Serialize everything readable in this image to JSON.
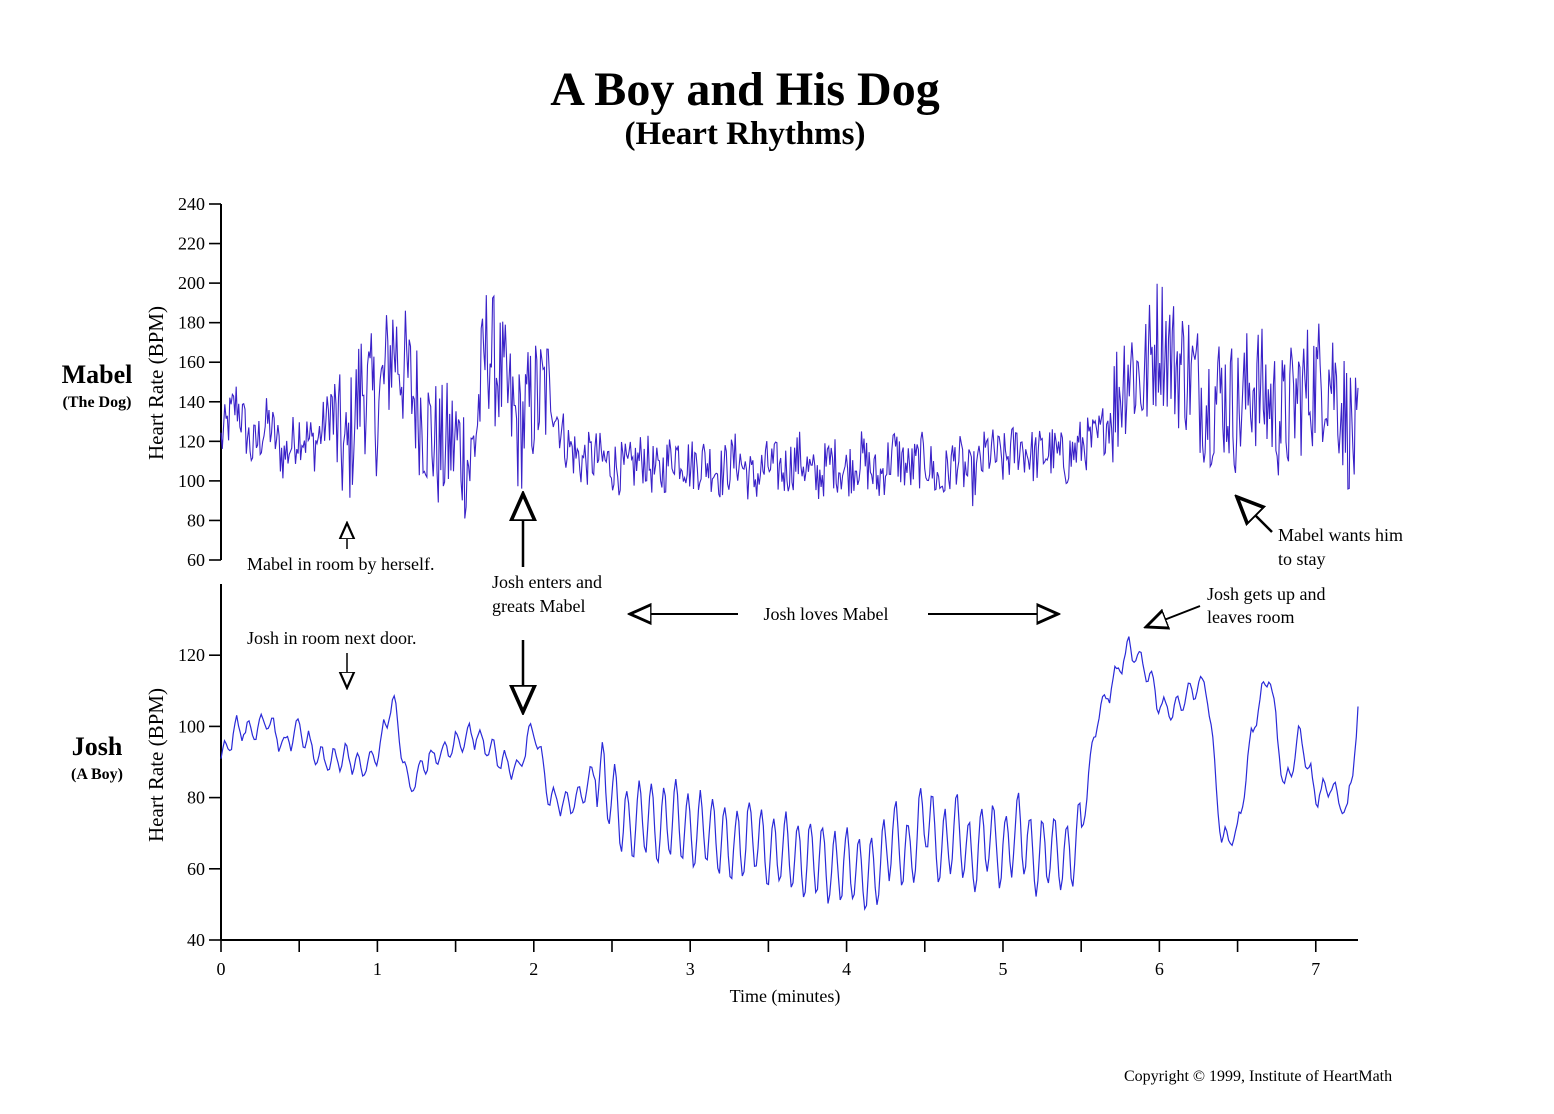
{
  "chart_data": [
    {
      "type": "line",
      "panel": "Mabel",
      "panel_name": "Mabel",
      "panel_subtitle": "(The Dog)",
      "ylabel": "Heart Rate (BPM)",
      "ylim": [
        60,
        240
      ],
      "yticks": [
        60,
        80,
        100,
        120,
        140,
        160,
        180,
        200,
        220,
        240
      ],
      "xlim": [
        0,
        7.27
      ],
      "series": [
        {
          "name": "Mabel heart rate",
          "color": "#3a22c8",
          "x": [
            0,
            0.1,
            0.2,
            0.3,
            0.4,
            0.5,
            0.6,
            0.7,
            0.8,
            0.9,
            1.0,
            1.1,
            1.2,
            1.3,
            1.4,
            1.5,
            1.6,
            1.7,
            1.8,
            1.9,
            2.0,
            2.1,
            2.2,
            2.3,
            2.4,
            2.5,
            2.6,
            2.7,
            2.8,
            2.9,
            3.0,
            3.1,
            3.2,
            3.3,
            3.4,
            3.5,
            3.6,
            3.7,
            3.8,
            3.9,
            4.0,
            4.1,
            4.2,
            4.3,
            4.4,
            4.5,
            4.6,
            4.7,
            4.8,
            4.9,
            5.0,
            5.1,
            5.2,
            5.3,
            5.4,
            5.5,
            5.6,
            5.7,
            5.8,
            5.9,
            6.0,
            6.1,
            6.2,
            6.3,
            6.4,
            6.5,
            6.6,
            6.7,
            6.8,
            6.9,
            7.0,
            7.1,
            7.2,
            7.27
          ],
          "values": [
            120,
            140,
            115,
            130,
            112,
            125,
            118,
            135,
            110,
            150,
            135,
            170,
            150,
            130,
            115,
            120,
            108,
            170,
            150,
            125,
            140,
            145,
            120,
            110,
            112,
            108,
            105,
            112,
            102,
            115,
            108,
            110,
            104,
            112,
            100,
            108,
            105,
            112,
            100,
            110,
            105,
            112,
            100,
            115,
            105,
            112,
            98,
            112,
            100,
            115,
            110,
            118,
            112,
            115,
            110,
            118,
            120,
            135,
            160,
            150,
            175,
            160,
            155,
            140,
            145,
            135,
            150,
            140,
            130,
            145,
            150,
            155,
            130,
            115
          ]
        }
      ]
    },
    {
      "type": "line",
      "panel": "Josh",
      "panel_name": "Josh",
      "panel_subtitle": "(A Boy)",
      "ylabel": "Heart Rate (BPM)",
      "xlabel": "Time (minutes)",
      "ylim": [
        40,
        140
      ],
      "yticks": [
        40,
        60,
        80,
        100,
        120
      ],
      "xlim": [
        0,
        7.27
      ],
      "xticks": [
        0,
        1,
        2,
        3,
        4,
        5,
        6,
        7
      ],
      "series": [
        {
          "name": "Josh heart rate",
          "color": "#2a2ad8",
          "x": [
            0,
            0.1,
            0.2,
            0.3,
            0.4,
            0.5,
            0.6,
            0.7,
            0.8,
            0.9,
            1.0,
            1.1,
            1.2,
            1.3,
            1.4,
            1.5,
            1.6,
            1.7,
            1.8,
            1.9,
            2.0,
            2.1,
            2.2,
            2.3,
            2.4,
            2.5,
            2.6,
            2.7,
            2.8,
            2.9,
            3.0,
            3.1,
            3.2,
            3.3,
            3.4,
            3.5,
            3.6,
            3.7,
            3.8,
            3.9,
            4.0,
            4.1,
            4.2,
            4.3,
            4.4,
            4.5,
            4.6,
            4.7,
            4.8,
            4.9,
            5.0,
            5.1,
            5.2,
            5.3,
            5.4,
            5.5,
            5.6,
            5.7,
            5.8,
            5.9,
            6.0,
            6.1,
            6.2,
            6.3,
            6.4,
            6.5,
            6.6,
            6.7,
            6.8,
            6.9,
            7.0,
            7.1,
            7.2,
            7.27
          ],
          "values": [
            90,
            100,
            98,
            102,
            94,
            100,
            92,
            90,
            92,
            88,
            92,
            108,
            82,
            90,
            92,
            95,
            98,
            95,
            90,
            88,
            100,
            80,
            78,
            80,
            88,
            80,
            72,
            75,
            72,
            75,
            70,
            72,
            68,
            66,
            70,
            64,
            66,
            62,
            64,
            60,
            62,
            58,
            60,
            70,
            62,
            76,
            64,
            72,
            62,
            70,
            64,
            72,
            62,
            66,
            62,
            70,
            102,
            112,
            122,
            118,
            106,
            104,
            110,
            112,
            68,
            70,
            100,
            116,
            82,
            98,
            80,
            84,
            75,
            103
          ]
        }
      ]
    }
  ],
  "title": "A Boy and His Dog",
  "subtitle": "(Heart Rhythms)",
  "annotations": {
    "mabel_alone": "Mabel in room by herself.",
    "josh_next_door": "Josh in room next door.",
    "josh_enters_1": "Josh enters and",
    "josh_enters_2": "greats Mabel",
    "josh_loves": "Josh loves Mabel",
    "josh_leaves_1": "Josh gets up and",
    "josh_leaves_2": "leaves room",
    "mabel_wants_1": "Mabel wants him",
    "mabel_wants_2": "to stay"
  },
  "copyright": "Copyright © 1999, Institute of HeartMath",
  "colors": {
    "mabel_line": "#3a22c8",
    "josh_line": "#2a2ad8",
    "axis": "#000000"
  }
}
